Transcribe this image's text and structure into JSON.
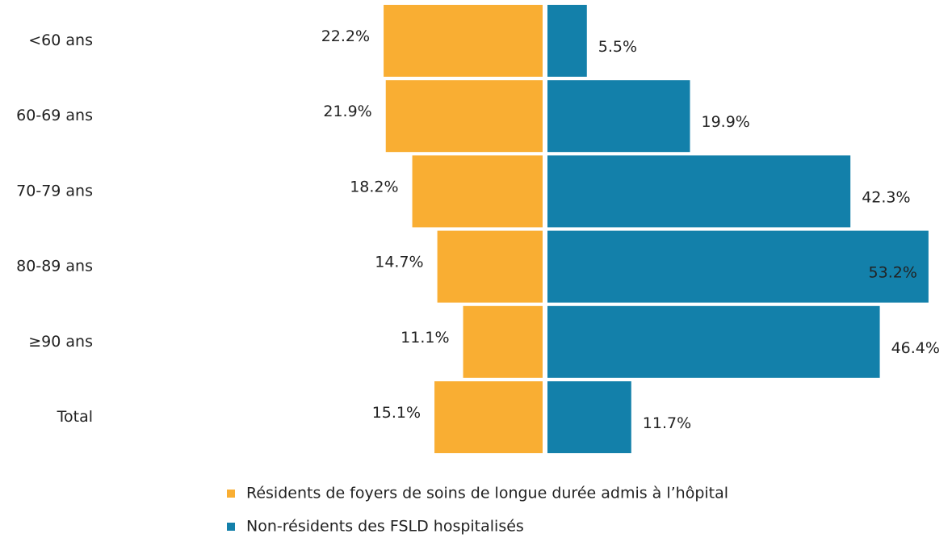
{
  "chart_data": {
    "type": "diverging-bar",
    "categories": [
      "<60 ans",
      "60-69 ans",
      "70-79 ans",
      "80-89 ans",
      "≥90 ans",
      "Total"
    ],
    "series": [
      {
        "name": "Résidents de foyers de soins de longue durée admis à l’hôpital",
        "color": "#f9ae33",
        "values": [
          22.2,
          21.9,
          18.2,
          14.7,
          11.1,
          15.1
        ],
        "value_labels": [
          "22.2%",
          "21.9%",
          "18.2%",
          "14.7%",
          "11.1%",
          "15.1%"
        ]
      },
      {
        "name": "Non-résidents des FSLD hospitalisés",
        "color": "#1380aa",
        "values": [
          5.5,
          19.9,
          42.3,
          53.2,
          46.4,
          11.7
        ],
        "value_labels": [
          "5.5%",
          "19.9%",
          "42.3%",
          "53.2%",
          "46.4%",
          "11.7%"
        ]
      }
    ]
  }
}
